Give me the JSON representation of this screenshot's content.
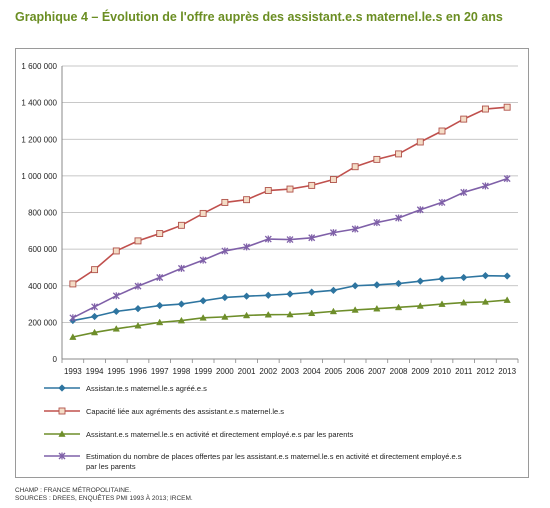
{
  "title": "Graphique 4 – Évolution de l'offre auprès des assistant.e.s maternel.le.s en 20 ans",
  "notes": {
    "champ": "CHAMP : FRANCE MÉTROPOLITAINE.",
    "sources": "SOURCES : DREES, ENQUÊTES PMI 1993 À 2013; IRCEM."
  },
  "chart_data": {
    "type": "line",
    "x": [
      1993,
      1994,
      1995,
      1996,
      1997,
      1998,
      1999,
      2000,
      2001,
      2002,
      2003,
      2004,
      2005,
      2006,
      2007,
      2008,
      2009,
      2010,
      2011,
      2012,
      2013
    ],
    "x_tick_labels": [
      "1993",
      "1994",
      "1995",
      "1996",
      "1997",
      "1998",
      "1999",
      "2000",
      "2001",
      "2002",
      "2003",
      "2004",
      "2005",
      "2006",
      "2007",
      "2008",
      "2009",
      "2010",
      "2011",
      "2012",
      "2013"
    ],
    "ylim": [
      0,
      1600000
    ],
    "y_ticks": [
      0,
      200000,
      400000,
      600000,
      800000,
      1000000,
      1200000,
      1400000,
      1600000
    ],
    "y_tick_labels": [
      "0",
      "200 000",
      "400 000",
      "600 000",
      "800 000",
      "1 000 000",
      "1 200 000",
      "1 400 000",
      "1 600 000"
    ],
    "grid": true,
    "legend_position": "bottom",
    "series": [
      {
        "name": "Assistan.te.s maternel.le.s agréé.e.s",
        "color": "#2e75a0",
        "marker": "diamond",
        "values": [
          210000,
          232000,
          260000,
          275000,
          292000,
          300000,
          318000,
          336000,
          343000,
          348000,
          355000,
          365000,
          375000,
          400000,
          405000,
          412000,
          425000,
          438000,
          445000,
          455000,
          453000
        ]
      },
      {
        "name": "Capacité liée aux agréments des assistant.e.s  maternel.le.s",
        "color": "#c0504d",
        "marker": "square",
        "values": [
          410000,
          488000,
          590000,
          645000,
          685000,
          730000,
          795000,
          855000,
          870000,
          920000,
          928000,
          948000,
          980000,
          1050000,
          1090000,
          1120000,
          1185000,
          1245000,
          1310000,
          1365000,
          1375000
        ]
      },
      {
        "name": "Assistant.e.s maternel.le.s en activité et directement employé.e.s par les parents",
        "color": "#6e8e2a",
        "marker": "triangle",
        "values": [
          120000,
          145000,
          165000,
          182000,
          200000,
          210000,
          225000,
          230000,
          238000,
          242000,
          243000,
          250000,
          260000,
          268000,
          275000,
          282000,
          290000,
          300000,
          308000,
          312000,
          322000
        ]
      },
      {
        "name": "Estimation  du nombre de places offertes par les assistant.e.s  maternel.le.s en activité et directement employé.e.s par les parents",
        "legend_lines": [
          "Estimation  du nombre de places offertes par les assistant.e.s  maternel.le.s en activité et directement employé.e.s",
          "par les parents"
        ],
        "color": "#7f60a8",
        "marker": "x",
        "values": [
          225000,
          285000,
          345000,
          398000,
          445000,
          495000,
          540000,
          590000,
          612000,
          655000,
          652000,
          662000,
          690000,
          710000,
          745000,
          770000,
          815000,
          855000,
          910000,
          945000,
          985000
        ]
      }
    ]
  }
}
